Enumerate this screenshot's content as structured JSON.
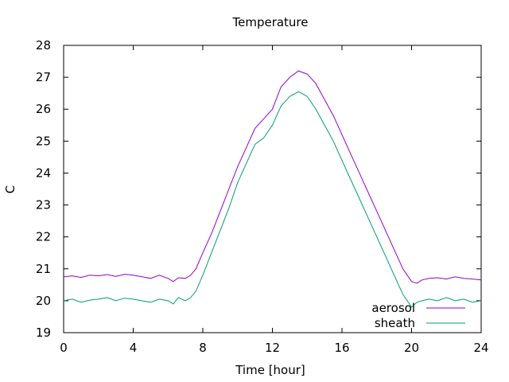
{
  "chart_data": {
    "type": "line",
    "title": "Temperature",
    "xlabel": "Time [hour]",
    "ylabel": "C",
    "xlim": [
      0,
      24
    ],
    "ylim": [
      19,
      28
    ],
    "xticks": [
      0,
      4,
      8,
      12,
      16,
      20,
      24
    ],
    "yticks": [
      19,
      20,
      21,
      22,
      23,
      24,
      25,
      26,
      27,
      28
    ],
    "grid": false,
    "legend_position": "bottom-right",
    "series": [
      {
        "name": "aerosol",
        "color": "#9400d3",
        "x": [
          0,
          0.5,
          1,
          1.5,
          2,
          2.5,
          3,
          3.5,
          4,
          4.5,
          5,
          5.5,
          6,
          6.3,
          6.6,
          7,
          7.3,
          7.6,
          8,
          8.5,
          9,
          9.5,
          10,
          10.5,
          11,
          11.5,
          12,
          12.5,
          13,
          13.5,
          14,
          14.5,
          15,
          15.5,
          16,
          16.5,
          17,
          17.5,
          18,
          18.5,
          19,
          19.5,
          20,
          20.3,
          20.6,
          21,
          21.5,
          22,
          22.5,
          23,
          23.5,
          24
        ],
        "y": [
          20.75,
          20.78,
          20.73,
          20.8,
          20.78,
          20.82,
          20.76,
          20.83,
          20.8,
          20.75,
          20.7,
          20.8,
          20.7,
          20.6,
          20.72,
          20.7,
          20.8,
          21.0,
          21.5,
          22.1,
          22.8,
          23.5,
          24.2,
          24.8,
          25.4,
          25.7,
          26.0,
          26.7,
          27.0,
          27.2,
          27.1,
          26.8,
          26.3,
          25.8,
          25.2,
          24.6,
          24.0,
          23.4,
          22.8,
          22.2,
          21.6,
          21.0,
          20.6,
          20.55,
          20.65,
          20.7,
          20.72,
          20.68,
          20.75,
          20.7,
          20.68,
          20.65
        ]
      },
      {
        "name": "sheath",
        "color": "#009e73",
        "x": [
          0,
          0.5,
          1,
          1.5,
          2,
          2.5,
          3,
          3.5,
          4,
          4.5,
          5,
          5.5,
          6,
          6.3,
          6.6,
          7,
          7.3,
          7.6,
          8,
          8.5,
          9,
          9.5,
          10,
          10.5,
          11,
          11.5,
          12,
          12.5,
          13,
          13.5,
          14,
          14.5,
          15,
          15.5,
          16,
          16.5,
          17,
          17.5,
          18,
          18.5,
          19,
          19.5,
          20,
          20.3,
          20.6,
          21,
          21.5,
          22,
          22.5,
          23,
          23.5,
          24
        ],
        "y": [
          20.0,
          20.05,
          19.95,
          20.02,
          20.05,
          20.1,
          20.0,
          20.08,
          20.05,
          20.0,
          19.95,
          20.05,
          20.0,
          19.9,
          20.1,
          20.0,
          20.1,
          20.3,
          20.8,
          21.5,
          22.2,
          22.9,
          23.7,
          24.3,
          24.9,
          25.1,
          25.5,
          26.1,
          26.4,
          26.55,
          26.4,
          26.0,
          25.5,
          25.0,
          24.4,
          23.8,
          23.2,
          22.6,
          22.0,
          21.4,
          20.8,
          20.2,
          19.8,
          19.95,
          20.0,
          20.05,
          20.0,
          20.1,
          20.0,
          20.05,
          19.95,
          20.0
        ]
      }
    ]
  }
}
